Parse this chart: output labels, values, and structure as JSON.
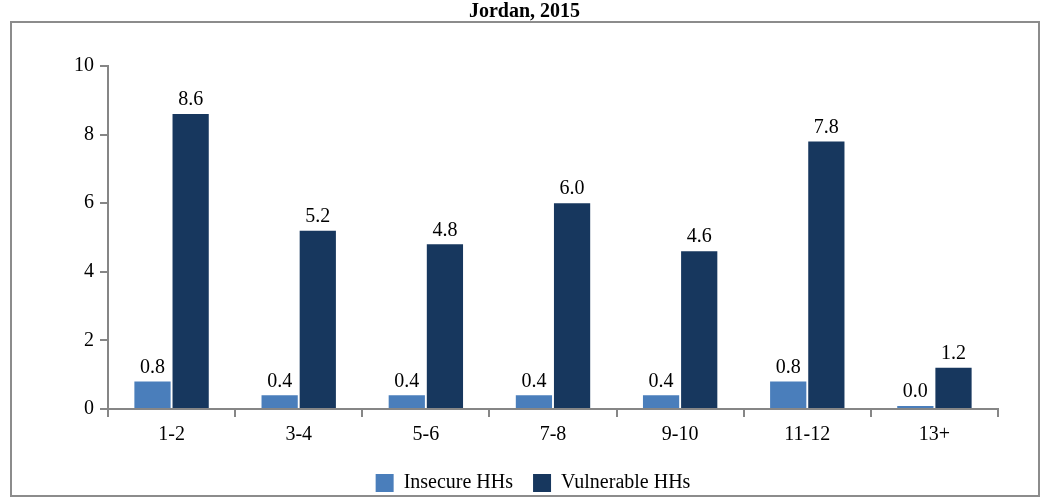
{
  "chart_data": {
    "type": "bar",
    "title": "Jordan, 2015",
    "categories": [
      "1-2",
      "3-4",
      "5-6",
      "7-8",
      "9-10",
      "11-12",
      "13+"
    ],
    "series": [
      {
        "name": "Insecure HHs",
        "color": "#4a7ebb",
        "values": [
          0.8,
          0.4,
          0.4,
          0.4,
          0.4,
          0.8,
          0.0
        ],
        "value_labels": [
          "0.8",
          "0.4",
          "0.4",
          "0.4",
          "0.4",
          "0.8",
          "0.0"
        ]
      },
      {
        "name": "Vulnerable HHs",
        "color": "#17375e",
        "values": [
          8.6,
          5.2,
          4.8,
          6.0,
          4.6,
          7.8,
          1.2
        ],
        "value_labels": [
          "8.6",
          "5.2",
          "4.8",
          "6.0",
          "4.6",
          "7.8",
          "1.2"
        ]
      }
    ],
    "ylim": [
      0,
      10
    ],
    "yticks": [
      0,
      2,
      4,
      6,
      8,
      10
    ],
    "legend": "bottom"
  }
}
